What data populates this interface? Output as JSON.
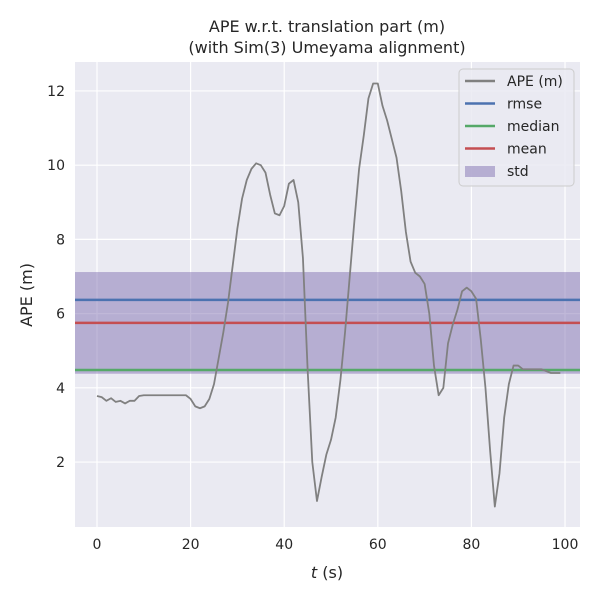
{
  "chart_data": {
    "type": "line",
    "title": "APE w.r.t. translation part (m)",
    "subtitle": "(with Sim(3) Umeyama alignment)",
    "xlabel_italic": "t",
    "xlabel_rest": " (s)",
    "ylabel": "APE (m)",
    "xlim": [
      -4.7,
      103.2
    ],
    "ylim": [
      0.25,
      12.78
    ],
    "xticks": [
      0,
      20,
      40,
      60,
      80,
      100
    ],
    "yticks": [
      2,
      4,
      6,
      8,
      10,
      12
    ],
    "grid": true,
    "legend_position": "top-right",
    "legend": [
      "APE (m)",
      "rmse",
      "median",
      "mean",
      "std"
    ],
    "stats": {
      "rmse": 6.37,
      "median": 4.48,
      "mean": 5.75,
      "std": 1.37
    },
    "colors": {
      "ape": "#808080",
      "rmse": "#4c72b0",
      "median": "#55a868",
      "mean": "#c44e52",
      "std": "#8172b2",
      "bg": "#eaeaf2"
    },
    "series": [
      {
        "name": "APE (m)",
        "x": [
          0,
          1,
          2,
          3,
          4,
          5,
          6,
          7,
          8,
          9,
          10,
          15,
          19,
          20,
          21,
          22,
          23,
          24,
          25,
          26,
          27,
          28,
          29,
          30,
          31,
          32,
          33,
          34,
          35,
          36,
          37,
          38,
          39,
          40,
          41,
          42,
          43,
          44,
          45,
          46,
          47,
          48,
          49,
          50,
          51,
          52,
          53,
          54,
          55,
          56,
          57,
          58,
          59,
          60,
          61,
          62,
          63,
          64,
          65,
          66,
          67,
          68,
          69,
          70,
          71,
          72,
          73,
          74,
          75,
          76,
          77,
          78,
          79,
          80,
          81,
          82,
          83,
          84,
          85,
          86,
          87,
          88,
          89,
          90,
          91,
          93,
          95,
          96,
          97,
          99
        ],
        "y": [
          3.78,
          3.75,
          3.65,
          3.72,
          3.62,
          3.65,
          3.58,
          3.65,
          3.65,
          3.78,
          3.8,
          3.8,
          3.8,
          3.7,
          3.5,
          3.45,
          3.5,
          3.7,
          4.1,
          4.8,
          5.5,
          6.3,
          7.3,
          8.3,
          9.1,
          9.6,
          9.9,
          10.05,
          10.0,
          9.8,
          9.2,
          8.7,
          8.65,
          8.9,
          9.5,
          9.6,
          9.0,
          7.5,
          4.5,
          2.0,
          0.95,
          1.6,
          2.2,
          2.6,
          3.2,
          4.2,
          5.5,
          7.0,
          8.5,
          9.9,
          10.8,
          11.8,
          12.2,
          12.2,
          11.6,
          11.2,
          10.7,
          10.2,
          9.3,
          8.2,
          7.4,
          7.1,
          7.0,
          6.8,
          6.0,
          4.6,
          3.8,
          4.0,
          5.2,
          5.7,
          6.1,
          6.6,
          6.7,
          6.6,
          6.4,
          5.3,
          4.0,
          2.3,
          0.8,
          1.7,
          3.2,
          4.1,
          4.6,
          4.6,
          4.5,
          4.5,
          4.5,
          4.45,
          4.4,
          4.4
        ]
      }
    ]
  }
}
